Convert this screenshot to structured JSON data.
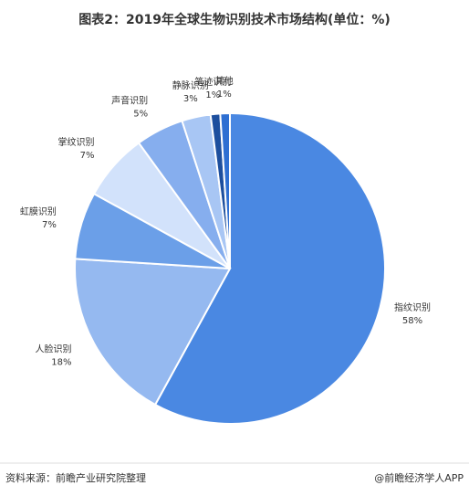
{
  "chart_data": {
    "type": "pie",
    "title": "图表2：2019年全球生物识别技术市场结构(单位：%)",
    "categories": [
      "指纹识别",
      "人脸识别",
      "虹膜识别",
      "掌纹识别",
      "声音识别",
      "静脉识别",
      "笔迹识别",
      "其他"
    ],
    "values": [
      58,
      18,
      7,
      7,
      5,
      3,
      1,
      1
    ],
    "value_labels": [
      "58%",
      "18%",
      "7%",
      "7%",
      "5%",
      "3%",
      "1%",
      "1%"
    ],
    "colors": [
      "#4a88e2",
      "#95b9f0",
      "#6b9fe8",
      "#d2e2fb",
      "#86aeee",
      "#a8c6f4",
      "#1d4f9e",
      "#2e6fd2"
    ],
    "source": "资料来源：前瞻产业研究院整理",
    "credit": "@前瞻经济学人APP"
  }
}
